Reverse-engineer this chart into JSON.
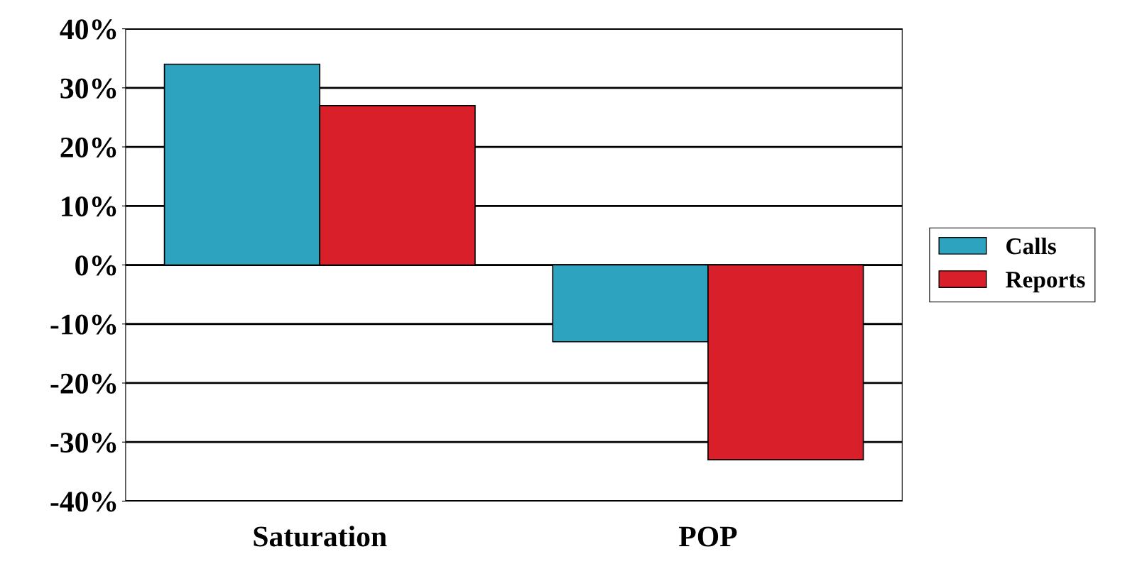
{
  "chart_data": {
    "type": "bar",
    "categories": [
      "Saturation",
      "POP"
    ],
    "series": [
      {
        "name": "Calls",
        "color": "#2ea3c0",
        "values": [
          34,
          -13
        ]
      },
      {
        "name": "Reports",
        "color": "#d91f29",
        "values": [
          27,
          -33
        ]
      }
    ],
    "ylim": [
      -40,
      40
    ],
    "yticks": [
      {
        "value": -40,
        "label": "-40%"
      },
      {
        "value": -30,
        "label": "-30%"
      },
      {
        "value": -20,
        "label": "-20%"
      },
      {
        "value": -10,
        "label": "-10%"
      },
      {
        "value": 0,
        "label": "0%"
      },
      {
        "value": 10,
        "label": "10%"
      },
      {
        "value": 20,
        "label": "20%"
      },
      {
        "value": 30,
        "label": "30%"
      },
      {
        "value": 40,
        "label": "40%"
      }
    ],
    "grid": "y",
    "legend": "right"
  }
}
